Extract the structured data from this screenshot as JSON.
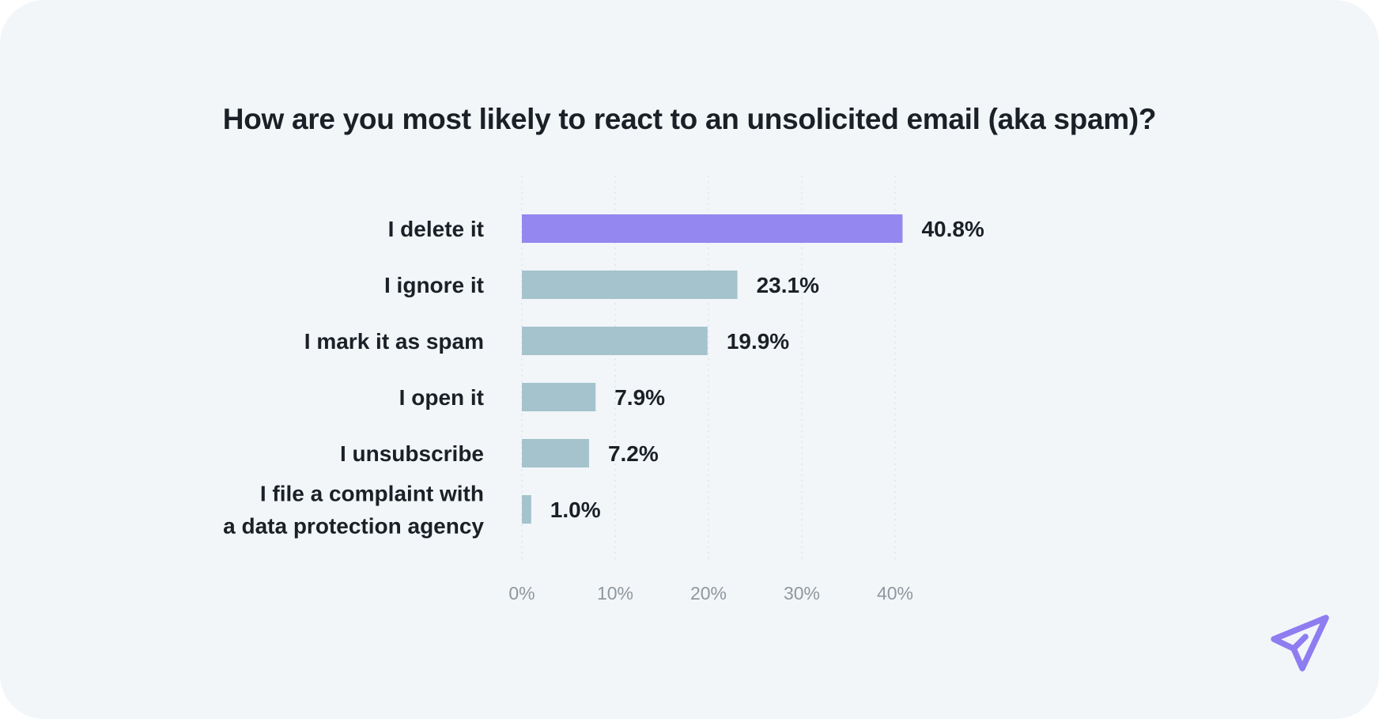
{
  "colors": {
    "background": "#f2f6f9",
    "highlight_bar": "#9587f0",
    "default_bar": "#a4c3cd",
    "text": "#1b2027",
    "tick_text": "#8f979e",
    "grid": "#d9dfe4",
    "logo": "#8e7cf0"
  },
  "logo": {
    "icon": "paper-plane-icon"
  },
  "chart_data": {
    "type": "bar",
    "orientation": "horizontal",
    "title": "How are you most likely to react to an unsolicited email (aka spam)?",
    "categories": [
      "I delete it",
      "I ignore it",
      "I mark it as spam",
      "I open it",
      "I unsubscribe",
      "I file a complaint with a data protection agency"
    ],
    "category_lines": [
      [
        "I delete it"
      ],
      [
        "I ignore it"
      ],
      [
        "I mark it as spam"
      ],
      [
        "I open it"
      ],
      [
        "I unsubscribe"
      ],
      [
        "I file a complaint with",
        "a data protection agency"
      ]
    ],
    "values": [
      40.8,
      23.1,
      19.9,
      7.9,
      7.2,
      1.0
    ],
    "value_labels": [
      "40.8%",
      "23.1%",
      "19.9%",
      "7.9%",
      "7.2%",
      "1.0%"
    ],
    "highlight_index": 0,
    "xlim": [
      0,
      40
    ],
    "xticks": [
      0,
      10,
      20,
      30,
      40
    ],
    "xtick_labels": [
      "0%",
      "10%",
      "20%",
      "30%",
      "40%"
    ],
    "xlabel": "",
    "ylabel": "",
    "grid": "vertical-dotted",
    "legend": "none"
  }
}
